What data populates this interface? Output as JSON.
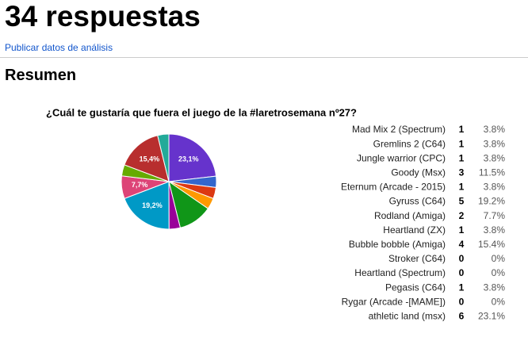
{
  "header": {
    "title": "34 respuestas",
    "link": "Publicar datos de análisis",
    "section": "Resumen"
  },
  "chart_data": {
    "type": "pie",
    "title": "¿Cuál te gustaría que fuera el juego de la #laretrosemana nº27?",
    "categories": [
      "Mad Mix 2 (Spectrum)",
      "Gremlins 2 (C64)",
      "Jungle warrior (CPC)",
      "Goody (Msx)",
      "Eternum (Arcade - 2015)",
      "Gyruss (C64)",
      "Rodland (Amiga)",
      "Heartland (ZX)",
      "Bubble bobble (Amiga)",
      "Stroker (C64)",
      "Heartland (Spectrum)",
      "Pegasis (C64)",
      "Rygar (Arcade -[MAME])",
      "athletic land (msx)"
    ],
    "counts": [
      1,
      1,
      1,
      3,
      1,
      5,
      2,
      1,
      4,
      0,
      0,
      1,
      0,
      6
    ],
    "values": [
      3.8,
      3.8,
      3.8,
      11.5,
      3.8,
      19.2,
      7.7,
      3.8,
      15.4,
      0,
      0,
      3.8,
      0,
      23.1
    ],
    "value_labels": [
      "3.8%",
      "3.8%",
      "3.8%",
      "11.5%",
      "3.8%",
      "19.2%",
      "7.7%",
      "3.8%",
      "15.4%",
      "0%",
      "0%",
      "3.8%",
      "0%",
      "23.1%"
    ],
    "slice_labels": [
      null,
      null,
      null,
      null,
      null,
      "19,2%",
      "7,7%",
      null,
      "15,4%",
      null,
      null,
      null,
      null,
      "23,1%"
    ],
    "colors": [
      "#3366cc",
      "#dc3912",
      "#ff9900",
      "#109618",
      "#990099",
      "#0099c6",
      "#dd4477",
      "#66aa00",
      "#b82e2e",
      "#316395",
      "#994499",
      "#22aa99",
      "#aaaa11",
      "#6633cc"
    ]
  }
}
